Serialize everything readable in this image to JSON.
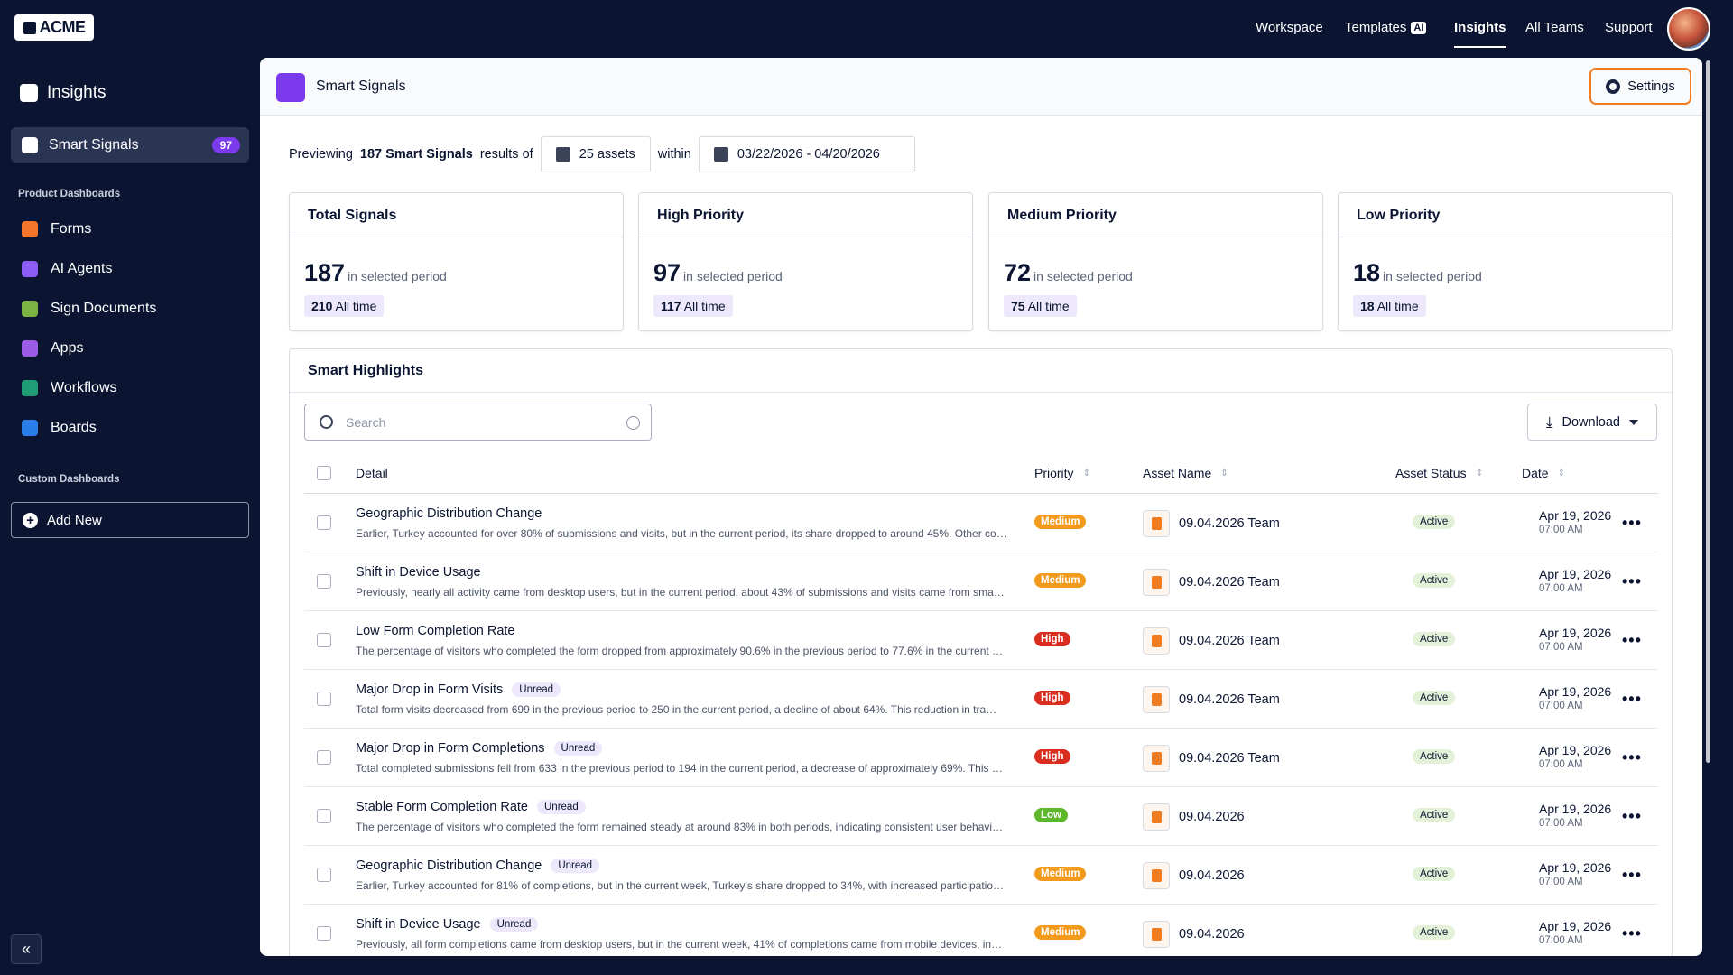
{
  "brand": "ACME",
  "top_nav": [
    {
      "label": "Workspace"
    },
    {
      "label": "Templates",
      "badge": "AI"
    },
    {
      "label": "Insights",
      "active": true
    },
    {
      "label": "All Teams"
    },
    {
      "label": "Support"
    }
  ],
  "sidebar": {
    "title": "Insights",
    "active_item": {
      "label": "Smart Signals",
      "badge": "97"
    },
    "product_heading": "Product Dashboards",
    "product_items": [
      "Forms",
      "AI Agents",
      "Sign Documents",
      "Apps",
      "Workflows",
      "Boards"
    ],
    "custom_heading": "Custom Dashboards",
    "add_new": "Add New",
    "collapse": "«"
  },
  "header": {
    "title": "Smart Signals",
    "settings": "Settings"
  },
  "preview": {
    "prefix": "Previewing",
    "count": "187 Smart Signals",
    "middle": "results of",
    "assets": "25 assets",
    "within": "within",
    "date_range": "03/22/2026 - 04/20/2026"
  },
  "stats": [
    {
      "title": "Total Signals",
      "value": 187,
      "period": "in selected period",
      "all_time_value": 210,
      "all_time_label": "All time"
    },
    {
      "title": "High Priority",
      "value": 97,
      "period": "in selected period",
      "all_time_value": 117,
      "all_time_label": "All time"
    },
    {
      "title": "Medium Priority",
      "value": 72,
      "period": "in selected period",
      "all_time_value": 75,
      "all_time_label": "All time"
    },
    {
      "title": "Low Priority",
      "value": 18,
      "period": "in selected period",
      "all_time_value": 18,
      "all_time_label": "All time"
    }
  ],
  "highlights": {
    "title": "Smart Highlights",
    "search_placeholder": "Search",
    "download": "Download",
    "columns": [
      "Detail",
      "Priority",
      "Asset Name",
      "Asset Status",
      "Date"
    ],
    "rows": [
      {
        "title": "Geographic Distribution Change",
        "description": "Earlier, Turkey accounted for over 80% of submissions and visits, but in the current period, its share dropped to around 45%. Other co…",
        "priority": "Medium",
        "priority_color": "#f29a1c",
        "asset": "09.04.2026 Team",
        "status": "Active",
        "date": "Apr 19, 2026",
        "time": "07:00 AM"
      },
      {
        "title": "Shift in Device Usage",
        "description": "Previously, nearly all activity came from desktop users, but in the current period, about 43% of submissions and visits came from sma…",
        "priority": "Medium",
        "priority_color": "#f29a1c",
        "asset": "09.04.2026 Team",
        "status": "Active",
        "date": "Apr 19, 2026",
        "time": "07:00 AM"
      },
      {
        "title": "Low Form Completion Rate",
        "description": "The percentage of visitors who completed the form dropped from approximately 90.6% in the previous period to 77.6% in the current …",
        "priority": "High",
        "priority_color": "#d92d20",
        "asset": "09.04.2026 Team",
        "status": "Active",
        "date": "Apr 19, 2026",
        "time": "07:00 AM"
      },
      {
        "title": "Major Drop in Form Visits",
        "badge": "Unread",
        "description": "Total form visits decreased from 699 in the previous period to 250 in the current period, a decline of about 64%. This reduction in tra…",
        "priority": "High",
        "priority_color": "#d92d20",
        "asset": "09.04.2026 Team",
        "status": "Active",
        "date": "Apr 19, 2026",
        "time": "07:00 AM"
      },
      {
        "title": "Major Drop in Form Completions",
        "badge": "Unread",
        "description": "Total completed submissions fell from 633 in the previous period to 194 in the current period, a decrease of approximately 69%. This …",
        "priority": "High",
        "priority_color": "#d92d20",
        "asset": "09.04.2026 Team",
        "status": "Active",
        "date": "Apr 19, 2026",
        "time": "07:00 AM"
      },
      {
        "title": "Stable Form Completion Rate",
        "badge": "Unread",
        "description": "The percentage of visitors who completed the form remained steady at around 83% in both periods, indicating consistent user behavi…",
        "priority": "Low",
        "priority_color": "#5cb82a",
        "asset": "09.04.2026",
        "status": "Active",
        "date": "Apr 19, 2026",
        "time": "07:00 AM"
      },
      {
        "title": "Geographic Distribution Change",
        "badge": "Unread",
        "description": "Earlier, Turkey accounted for 81% of completions, but in the current week, Turkey's share dropped to 34%, with increased participatio…",
        "priority": "Medium",
        "priority_color": "#f29a1c",
        "asset": "09.04.2026",
        "status": "Active",
        "date": "Apr 19, 2026",
        "time": "07:00 AM"
      },
      {
        "title": "Shift in Device Usage",
        "badge": "Unread",
        "description": "Previously, all form completions came from desktop users, but in the current week, 41% of completions came from mobile devices, in…",
        "priority": "Medium",
        "priority_color": "#f29a1c",
        "asset": "09.04.2026",
        "status": "Active",
        "date": "Apr 19, 2026",
        "time": "07:00 AM"
      }
    ]
  }
}
